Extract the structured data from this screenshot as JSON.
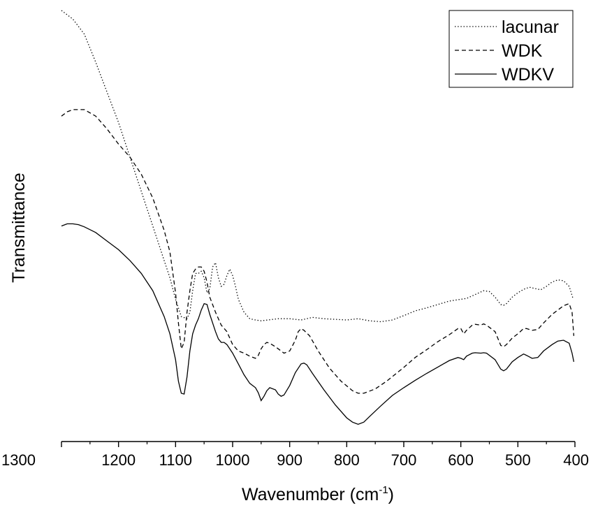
{
  "chart_data": {
    "type": "line",
    "title": "",
    "xlabel": "Wavenumber (cm",
    "xlabel_sup": "-1",
    "xlabel_close": ")",
    "ylabel": "Transmittance",
    "xlim": [
      1300,
      400
    ],
    "x_reversed": true,
    "ylim": [
      0,
      1
    ],
    "y_ticks_labeled": false,
    "x_ticks": [
      1300,
      1200,
      1100,
      1000,
      900,
      800,
      700,
      600,
      500,
      400
    ],
    "x_tick_labels": [
      "1300",
      "1200",
      "1100",
      "1000",
      "900",
      "800",
      "700",
      "600",
      "500",
      "400"
    ],
    "grid": false,
    "legend_position": "top-right",
    "series": [
      {
        "name": "lacunar",
        "style": "dotted",
        "points": [
          [
            1300,
            1.0
          ],
          [
            1280,
            0.98
          ],
          [
            1260,
            0.945
          ],
          [
            1240,
            0.88
          ],
          [
            1220,
            0.81
          ],
          [
            1200,
            0.74
          ],
          [
            1180,
            0.66
          ],
          [
            1160,
            0.58
          ],
          [
            1140,
            0.5
          ],
          [
            1120,
            0.42
          ],
          [
            1110,
            0.38
          ],
          [
            1100,
            0.33
          ],
          [
            1090,
            0.29
          ],
          [
            1080,
            0.285
          ],
          [
            1075,
            0.3
          ],
          [
            1070,
            0.35
          ],
          [
            1065,
            0.39
          ],
          [
            1060,
            0.39
          ],
          [
            1055,
            0.395
          ],
          [
            1050,
            0.38
          ],
          [
            1045,
            0.345
          ],
          [
            1040,
            0.355
          ],
          [
            1035,
            0.405
          ],
          [
            1030,
            0.415
          ],
          [
            1025,
            0.38
          ],
          [
            1020,
            0.36
          ],
          [
            1015,
            0.365
          ],
          [
            1010,
            0.385
          ],
          [
            1005,
            0.4
          ],
          [
            1000,
            0.385
          ],
          [
            995,
            0.36
          ],
          [
            990,
            0.33
          ],
          [
            980,
            0.3
          ],
          [
            970,
            0.285
          ],
          [
            960,
            0.282
          ],
          [
            950,
            0.28
          ],
          [
            920,
            0.285
          ],
          [
            900,
            0.285
          ],
          [
            880,
            0.282
          ],
          [
            860,
            0.288
          ],
          [
            840,
            0.285
          ],
          [
            800,
            0.282
          ],
          [
            780,
            0.285
          ],
          [
            760,
            0.28
          ],
          [
            740,
            0.278
          ],
          [
            720,
            0.282
          ],
          [
            700,
            0.292
          ],
          [
            680,
            0.303
          ],
          [
            660,
            0.31
          ],
          [
            640,
            0.318
          ],
          [
            620,
            0.326
          ],
          [
            600,
            0.33
          ],
          [
            590,
            0.332
          ],
          [
            580,
            0.338
          ],
          [
            560,
            0.35
          ],
          [
            550,
            0.348
          ],
          [
            540,
            0.335
          ],
          [
            530,
            0.318
          ],
          [
            525,
            0.316
          ],
          [
            520,
            0.32
          ],
          [
            510,
            0.335
          ],
          [
            500,
            0.345
          ],
          [
            490,
            0.353
          ],
          [
            480,
            0.358
          ],
          [
            470,
            0.355
          ],
          [
            460,
            0.352
          ],
          [
            450,
            0.36
          ],
          [
            440,
            0.37
          ],
          [
            430,
            0.375
          ],
          [
            420,
            0.373
          ],
          [
            410,
            0.36
          ],
          [
            403,
            0.33
          ]
        ]
      },
      {
        "name": "WDK",
        "style": "dashed",
        "points": [
          [
            1300,
            0.755
          ],
          [
            1290,
            0.765
          ],
          [
            1280,
            0.77
          ],
          [
            1260,
            0.77
          ],
          [
            1240,
            0.755
          ],
          [
            1220,
            0.725
          ],
          [
            1200,
            0.69
          ],
          [
            1180,
            0.66
          ],
          [
            1160,
            0.62
          ],
          [
            1140,
            0.565
          ],
          [
            1120,
            0.49
          ],
          [
            1110,
            0.44
          ],
          [
            1100,
            0.345
          ],
          [
            1095,
            0.275
          ],
          [
            1090,
            0.215
          ],
          [
            1085,
            0.23
          ],
          [
            1080,
            0.3
          ],
          [
            1075,
            0.35
          ],
          [
            1070,
            0.39
          ],
          [
            1065,
            0.4
          ],
          [
            1060,
            0.405
          ],
          [
            1055,
            0.405
          ],
          [
            1050,
            0.395
          ],
          [
            1045,
            0.37
          ],
          [
            1040,
            0.335
          ],
          [
            1030,
            0.3
          ],
          [
            1020,
            0.27
          ],
          [
            1010,
            0.255
          ],
          [
            1000,
            0.225
          ],
          [
            990,
            0.21
          ],
          [
            980,
            0.205
          ],
          [
            970,
            0.198
          ],
          [
            960,
            0.193
          ],
          [
            955,
            0.2
          ],
          [
            950,
            0.215
          ],
          [
            945,
            0.225
          ],
          [
            940,
            0.23
          ],
          [
            935,
            0.228
          ],
          [
            925,
            0.22
          ],
          [
            920,
            0.215
          ],
          [
            910,
            0.205
          ],
          [
            900,
            0.21
          ],
          [
            890,
            0.235
          ],
          [
            885,
            0.255
          ],
          [
            880,
            0.262
          ],
          [
            875,
            0.258
          ],
          [
            865,
            0.245
          ],
          [
            850,
            0.21
          ],
          [
            830,
            0.17
          ],
          [
            810,
            0.14
          ],
          [
            790,
            0.118
          ],
          [
            780,
            0.112
          ],
          [
            770,
            0.112
          ],
          [
            750,
            0.122
          ],
          [
            730,
            0.14
          ],
          [
            700,
            0.172
          ],
          [
            680,
            0.195
          ],
          [
            660,
            0.213
          ],
          [
            640,
            0.232
          ],
          [
            620,
            0.248
          ],
          [
            605,
            0.262
          ],
          [
            600,
            0.262
          ],
          [
            595,
            0.25
          ],
          [
            590,
            0.258
          ],
          [
            580,
            0.27
          ],
          [
            575,
            0.272
          ],
          [
            565,
            0.27
          ],
          [
            560,
            0.273
          ],
          [
            555,
            0.27
          ],
          [
            540,
            0.255
          ],
          [
            530,
            0.223
          ],
          [
            525,
            0.22
          ],
          [
            520,
            0.225
          ],
          [
            510,
            0.24
          ],
          [
            500,
            0.25
          ],
          [
            490,
            0.262
          ],
          [
            485,
            0.262
          ],
          [
            475,
            0.258
          ],
          [
            465,
            0.26
          ],
          [
            455,
            0.275
          ],
          [
            440,
            0.295
          ],
          [
            430,
            0.305
          ],
          [
            420,
            0.315
          ],
          [
            410,
            0.32
          ],
          [
            405,
            0.3
          ],
          [
            402,
            0.245
          ]
        ]
      },
      {
        "name": "WDKV",
        "style": "solid",
        "points": [
          [
            1300,
            0.5
          ],
          [
            1290,
            0.505
          ],
          [
            1280,
            0.505
          ],
          [
            1270,
            0.503
          ],
          [
            1260,
            0.498
          ],
          [
            1240,
            0.485
          ],
          [
            1220,
            0.465
          ],
          [
            1200,
            0.445
          ],
          [
            1180,
            0.42
          ],
          [
            1160,
            0.39
          ],
          [
            1140,
            0.35
          ],
          [
            1120,
            0.29
          ],
          [
            1110,
            0.25
          ],
          [
            1100,
            0.19
          ],
          [
            1095,
            0.14
          ],
          [
            1090,
            0.112
          ],
          [
            1085,
            0.11
          ],
          [
            1080,
            0.15
          ],
          [
            1075,
            0.21
          ],
          [
            1070,
            0.25
          ],
          [
            1065,
            0.27
          ],
          [
            1060,
            0.285
          ],
          [
            1055,
            0.305
          ],
          [
            1050,
            0.32
          ],
          [
            1045,
            0.318
          ],
          [
            1040,
            0.295
          ],
          [
            1035,
            0.275
          ],
          [
            1030,
            0.255
          ],
          [
            1025,
            0.238
          ],
          [
            1020,
            0.23
          ],
          [
            1015,
            0.23
          ],
          [
            1010,
            0.225
          ],
          [
            1000,
            0.205
          ],
          [
            990,
            0.18
          ],
          [
            980,
            0.155
          ],
          [
            970,
            0.135
          ],
          [
            960,
            0.125
          ],
          [
            955,
            0.113
          ],
          [
            950,
            0.095
          ],
          [
            945,
            0.105
          ],
          [
            940,
            0.118
          ],
          [
            935,
            0.125
          ],
          [
            925,
            0.12
          ],
          [
            920,
            0.11
          ],
          [
            915,
            0.105
          ],
          [
            910,
            0.108
          ],
          [
            900,
            0.13
          ],
          [
            890,
            0.16
          ],
          [
            880,
            0.18
          ],
          [
            875,
            0.182
          ],
          [
            870,
            0.178
          ],
          [
            860,
            0.158
          ],
          [
            840,
            0.12
          ],
          [
            820,
            0.085
          ],
          [
            800,
            0.055
          ],
          [
            790,
            0.045
          ],
          [
            780,
            0.04
          ],
          [
            770,
            0.045
          ],
          [
            760,
            0.058
          ],
          [
            740,
            0.083
          ],
          [
            720,
            0.107
          ],
          [
            700,
            0.125
          ],
          [
            680,
            0.142
          ],
          [
            660,
            0.158
          ],
          [
            640,
            0.173
          ],
          [
            620,
            0.188
          ],
          [
            605,
            0.195
          ],
          [
            600,
            0.193
          ],
          [
            595,
            0.19
          ],
          [
            590,
            0.198
          ],
          [
            580,
            0.205
          ],
          [
            575,
            0.206
          ],
          [
            565,
            0.205
          ],
          [
            560,
            0.206
          ],
          [
            555,
            0.205
          ],
          [
            540,
            0.19
          ],
          [
            530,
            0.168
          ],
          [
            525,
            0.164
          ],
          [
            520,
            0.168
          ],
          [
            510,
            0.185
          ],
          [
            500,
            0.195
          ],
          [
            490,
            0.203
          ],
          [
            485,
            0.2
          ],
          [
            475,
            0.193
          ],
          [
            465,
            0.195
          ],
          [
            455,
            0.21
          ],
          [
            440,
            0.225
          ],
          [
            430,
            0.233
          ],
          [
            420,
            0.235
          ],
          [
            410,
            0.228
          ],
          [
            405,
            0.205
          ],
          [
            402,
            0.185
          ]
        ]
      }
    ]
  }
}
